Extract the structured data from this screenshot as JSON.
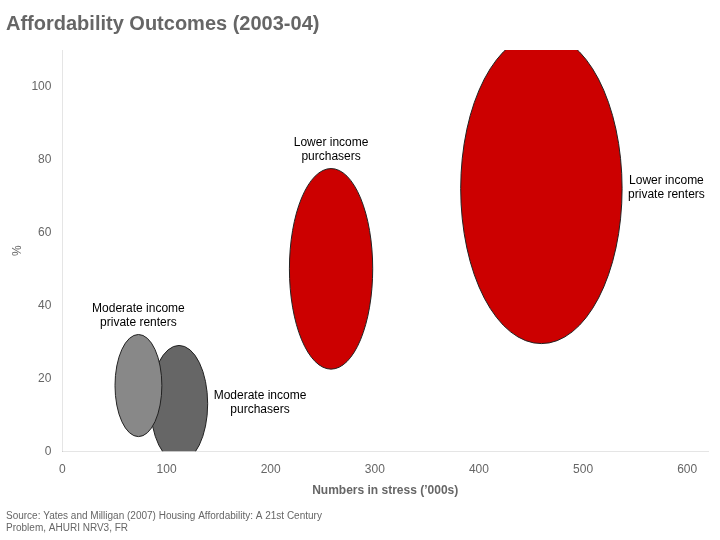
{
  "chart_data": {
    "type": "bubble",
    "title": "Affordability Outcomes (2003-04)",
    "xlabel": "Numbers in stress (’000s)",
    "ylabel": "%",
    "source": "Source: Yates and Milligan (2007) Housing Affordability: A 21st Century\nProblem, AHURI NRV3, FR",
    "labels": [
      "Lower income\nprivate renters",
      "Lower income\npurchasers",
      "Moderate income\nprivate renters",
      "Moderate income\npurchasers"
    ],
    "x": [
      460,
      258,
      73,
      112
    ],
    "values": [
      72,
      50,
      18,
      13
    ],
    "widths": [
      155,
      80,
      45,
      55
    ],
    "heights": [
      85,
      55,
      28,
      32
    ],
    "colors": [
      "#cc0000",
      "#cc0000",
      "#888888",
      "#666666"
    ],
    "xlim": [
      0,
      620
    ],
    "ylim": [
      0,
      110
    ],
    "xticks": [
      0,
      100,
      200,
      300,
      400,
      500,
      600
    ],
    "yticks": [
      0,
      20,
      40,
      60,
      80,
      100
    ],
    "grid": false
  }
}
